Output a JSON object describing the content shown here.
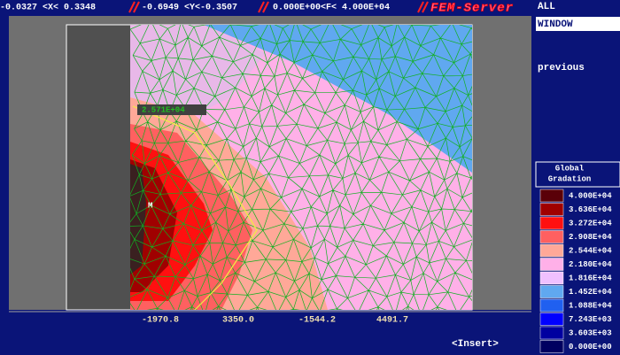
{
  "top_bar": {
    "x_range": "-0.0327 <X< 0.3348",
    "y_range": "-0.6949 <Y<-0.3507",
    "f_range": "0.000E+00<F< 4.000E+04",
    "app_name": "FEM-Server"
  },
  "menu": {
    "all": "ALL",
    "window": "WINDOW",
    "previous": "previous"
  },
  "plot": {
    "contour_label": "2.571E+04",
    "marker": "M"
  },
  "legend": {
    "title_line1": "Global",
    "title_line2": "Gradation",
    "entries": [
      {
        "label": "4.000E+04",
        "color": "#5a0008"
      },
      {
        "label": "3.636E+04",
        "color": "#a00000"
      },
      {
        "label": "3.272E+04",
        "color": "#ff1010"
      },
      {
        "label": "2.908E+04",
        "color": "#ff6060"
      },
      {
        "label": "2.544E+04",
        "color": "#ffa898"
      },
      {
        "label": "2.180E+04",
        "color": "#ffb0e8"
      },
      {
        "label": "1.816E+04",
        "color": "#f0c0ff"
      },
      {
        "label": "1.452E+04",
        "color": "#60a8f0"
      },
      {
        "label": "1.088E+04",
        "color": "#2060f0"
      },
      {
        "label": "7.243E+03",
        "color": "#0000ff"
      },
      {
        "label": "3.603E+03",
        "color": "#0000a0"
      },
      {
        "label": "0.000E+00",
        "color": "#000060"
      }
    ]
  },
  "bottom_coords": [
    "-1970.8",
    "3350.0",
    "-1544.2",
    "4491.7"
  ],
  "insert": "<Insert>"
}
